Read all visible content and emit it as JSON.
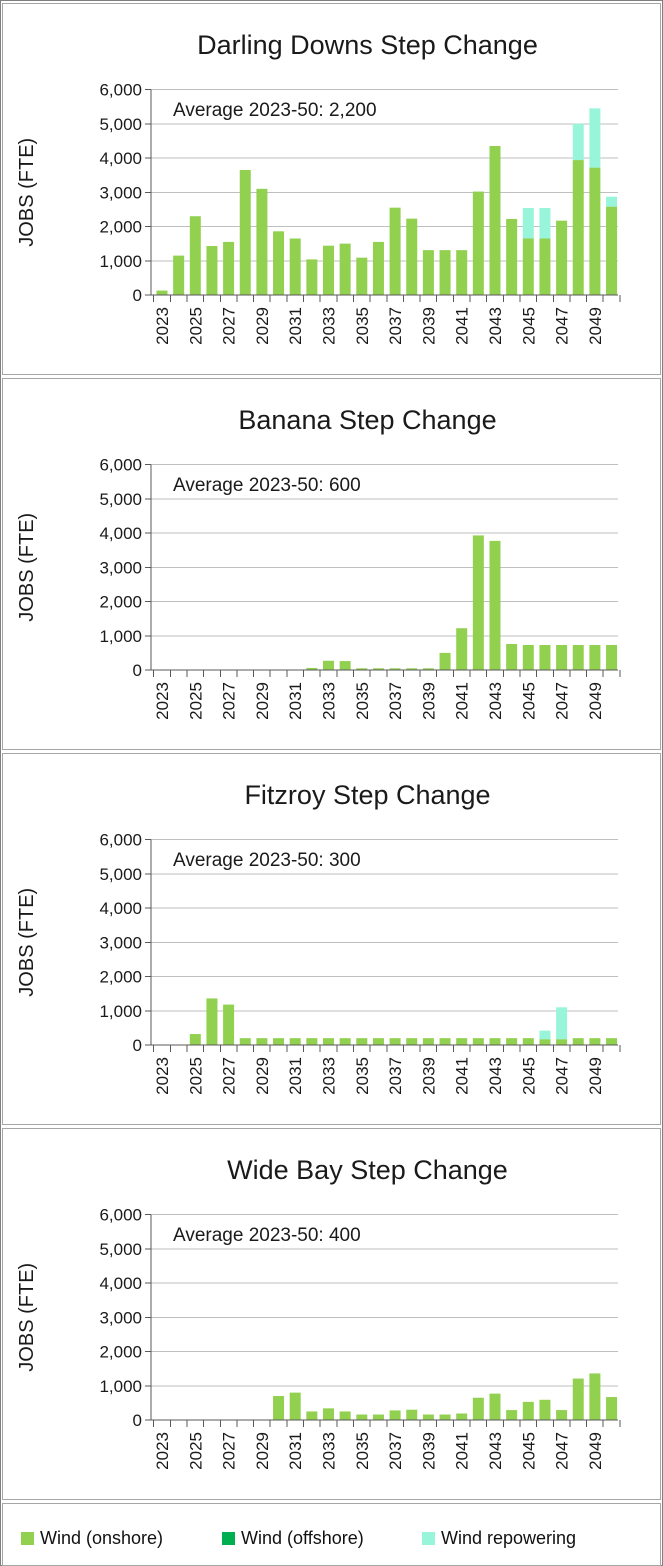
{
  "legend": {
    "items": [
      {
        "label": "Wind (onshore)",
        "color": "#92D050"
      },
      {
        "label": "Wind (offshore)",
        "color": "#00B050"
      },
      {
        "label": "Wind repowering",
        "color": "#99F5D9"
      }
    ]
  },
  "axes": {
    "ylabel": "JOBS (FTE)",
    "ylim": [
      0,
      6000
    ],
    "grid": true,
    "yticks": [
      {
        "value": 0,
        "label": "0"
      },
      {
        "value": 1000,
        "label": "1,000"
      },
      {
        "value": 2000,
        "label": "2,000"
      },
      {
        "value": 3000,
        "label": "3,000"
      },
      {
        "value": 4000,
        "label": "4,000"
      },
      {
        "value": 5000,
        "label": "5,000"
      },
      {
        "value": 6000,
        "label": "6,000"
      }
    ],
    "years": [
      2023,
      2024,
      2025,
      2026,
      2027,
      2028,
      2029,
      2030,
      2031,
      2032,
      2033,
      2034,
      2035,
      2036,
      2037,
      2038,
      2039,
      2040,
      2041,
      2042,
      2043,
      2044,
      2045,
      2046,
      2047,
      2048,
      2049,
      2050
    ],
    "xtick_labels": [
      "2023",
      "2025",
      "2027",
      "2029",
      "2031",
      "2033",
      "2035",
      "2037",
      "2039",
      "2041",
      "2043",
      "2045",
      "2047",
      "2049"
    ]
  },
  "colors": {
    "gridline": "#bfbfbf",
    "axis": "#595959",
    "panel_border": "#a6a6a6"
  },
  "chart_data": [
    {
      "type": "bar",
      "stacked": true,
      "title": "Darling Downs Step Change",
      "annotation": "Average 2023-50: 2,200",
      "xlabel": "",
      "ylabel": "JOBS (FTE)",
      "ylim": [
        0,
        6000
      ],
      "series": [
        {
          "name": "Wind (onshore)",
          "color": "#92D050",
          "values": [
            130,
            1150,
            2300,
            1430,
            1550,
            3650,
            3100,
            1860,
            1650,
            1040,
            1440,
            1500,
            1090,
            1550,
            2550,
            2230,
            1310,
            1310,
            1310,
            3020,
            4350,
            2220,
            1650,
            1650,
            2170,
            3940,
            3720,
            2580
          ]
        },
        {
          "name": "Wind (offshore)",
          "color": "#00B050",
          "values": [
            0,
            0,
            0,
            0,
            0,
            0,
            0,
            0,
            0,
            0,
            0,
            0,
            0,
            0,
            0,
            0,
            0,
            0,
            0,
            0,
            0,
            0,
            0,
            0,
            0,
            0,
            0,
            0
          ]
        },
        {
          "name": "Wind repowering",
          "color": "#99F5D9",
          "values": [
            0,
            0,
            0,
            0,
            0,
            0,
            0,
            0,
            0,
            0,
            0,
            0,
            0,
            0,
            0,
            0,
            0,
            0,
            0,
            0,
            0,
            0,
            890,
            890,
            0,
            1060,
            1730,
            290
          ]
        }
      ]
    },
    {
      "type": "bar",
      "stacked": true,
      "title": "Banana Step Change",
      "annotation": "Average 2023-50: 600",
      "xlabel": "",
      "ylabel": "JOBS (FTE)",
      "ylim": [
        0,
        6000
      ],
      "series": [
        {
          "name": "Wind (onshore)",
          "color": "#92D050",
          "values": [
            0,
            0,
            0,
            0,
            0,
            0,
            0,
            0,
            0,
            60,
            270,
            260,
            50,
            50,
            50,
            50,
            50,
            500,
            1220,
            3930,
            3770,
            760,
            730,
            730,
            730,
            730,
            730,
            730
          ]
        },
        {
          "name": "Wind (offshore)",
          "color": "#00B050",
          "values": [
            0,
            0,
            0,
            0,
            0,
            0,
            0,
            0,
            0,
            0,
            0,
            0,
            0,
            0,
            0,
            0,
            0,
            0,
            0,
            0,
            0,
            0,
            0,
            0,
            0,
            0,
            0,
            0
          ]
        },
        {
          "name": "Wind repowering",
          "color": "#99F5D9",
          "values": [
            0,
            0,
            0,
            0,
            0,
            0,
            0,
            0,
            0,
            0,
            0,
            0,
            0,
            0,
            0,
            0,
            0,
            0,
            0,
            0,
            0,
            0,
            0,
            0,
            0,
            0,
            0,
            0
          ]
        }
      ]
    },
    {
      "type": "bar",
      "stacked": true,
      "title": "Fitzroy Step Change",
      "annotation": "Average 2023-50: 300",
      "xlabel": "",
      "ylabel": "JOBS (FTE)",
      "ylim": [
        0,
        6000
      ],
      "series": [
        {
          "name": "Wind (onshore)",
          "color": "#92D050",
          "values": [
            0,
            0,
            320,
            1360,
            1180,
            200,
            200,
            200,
            200,
            200,
            200,
            200,
            200,
            200,
            200,
            200,
            200,
            200,
            200,
            200,
            200,
            200,
            200,
            170,
            170,
            200,
            200,
            200
          ]
        },
        {
          "name": "Wind (offshore)",
          "color": "#00B050",
          "values": [
            0,
            0,
            0,
            0,
            0,
            0,
            0,
            0,
            0,
            0,
            0,
            0,
            0,
            0,
            0,
            0,
            0,
            0,
            0,
            0,
            0,
            0,
            0,
            0,
            0,
            0,
            0,
            0
          ]
        },
        {
          "name": "Wind repowering",
          "color": "#99F5D9",
          "values": [
            0,
            0,
            0,
            0,
            0,
            0,
            0,
            0,
            0,
            0,
            0,
            0,
            0,
            0,
            0,
            0,
            0,
            0,
            0,
            0,
            0,
            0,
            0,
            250,
            930,
            0,
            0,
            0
          ]
        }
      ]
    },
    {
      "type": "bar",
      "stacked": true,
      "title": "Wide Bay Step Change",
      "annotation": "Average 2023-50: 400",
      "xlabel": "",
      "ylabel": "JOBS (FTE)",
      "ylim": [
        0,
        6000
      ],
      "series": [
        {
          "name": "Wind (onshore)",
          "color": "#92D050",
          "values": [
            0,
            0,
            0,
            0,
            0,
            0,
            0,
            700,
            800,
            250,
            340,
            250,
            160,
            160,
            280,
            300,
            160,
            160,
            190,
            650,
            770,
            290,
            530,
            590,
            290,
            1210,
            1360,
            670
          ]
        },
        {
          "name": "Wind (offshore)",
          "color": "#00B050",
          "values": [
            0,
            0,
            0,
            0,
            0,
            0,
            0,
            0,
            0,
            0,
            0,
            0,
            0,
            0,
            0,
            0,
            0,
            0,
            0,
            0,
            0,
            0,
            0,
            0,
            0,
            0,
            0,
            0
          ]
        },
        {
          "name": "Wind repowering",
          "color": "#99F5D9",
          "values": [
            0,
            0,
            0,
            0,
            0,
            0,
            0,
            0,
            0,
            0,
            0,
            0,
            0,
            0,
            0,
            0,
            0,
            0,
            0,
            0,
            0,
            0,
            0,
            0,
            0,
            0,
            0,
            0
          ]
        }
      ]
    }
  ]
}
